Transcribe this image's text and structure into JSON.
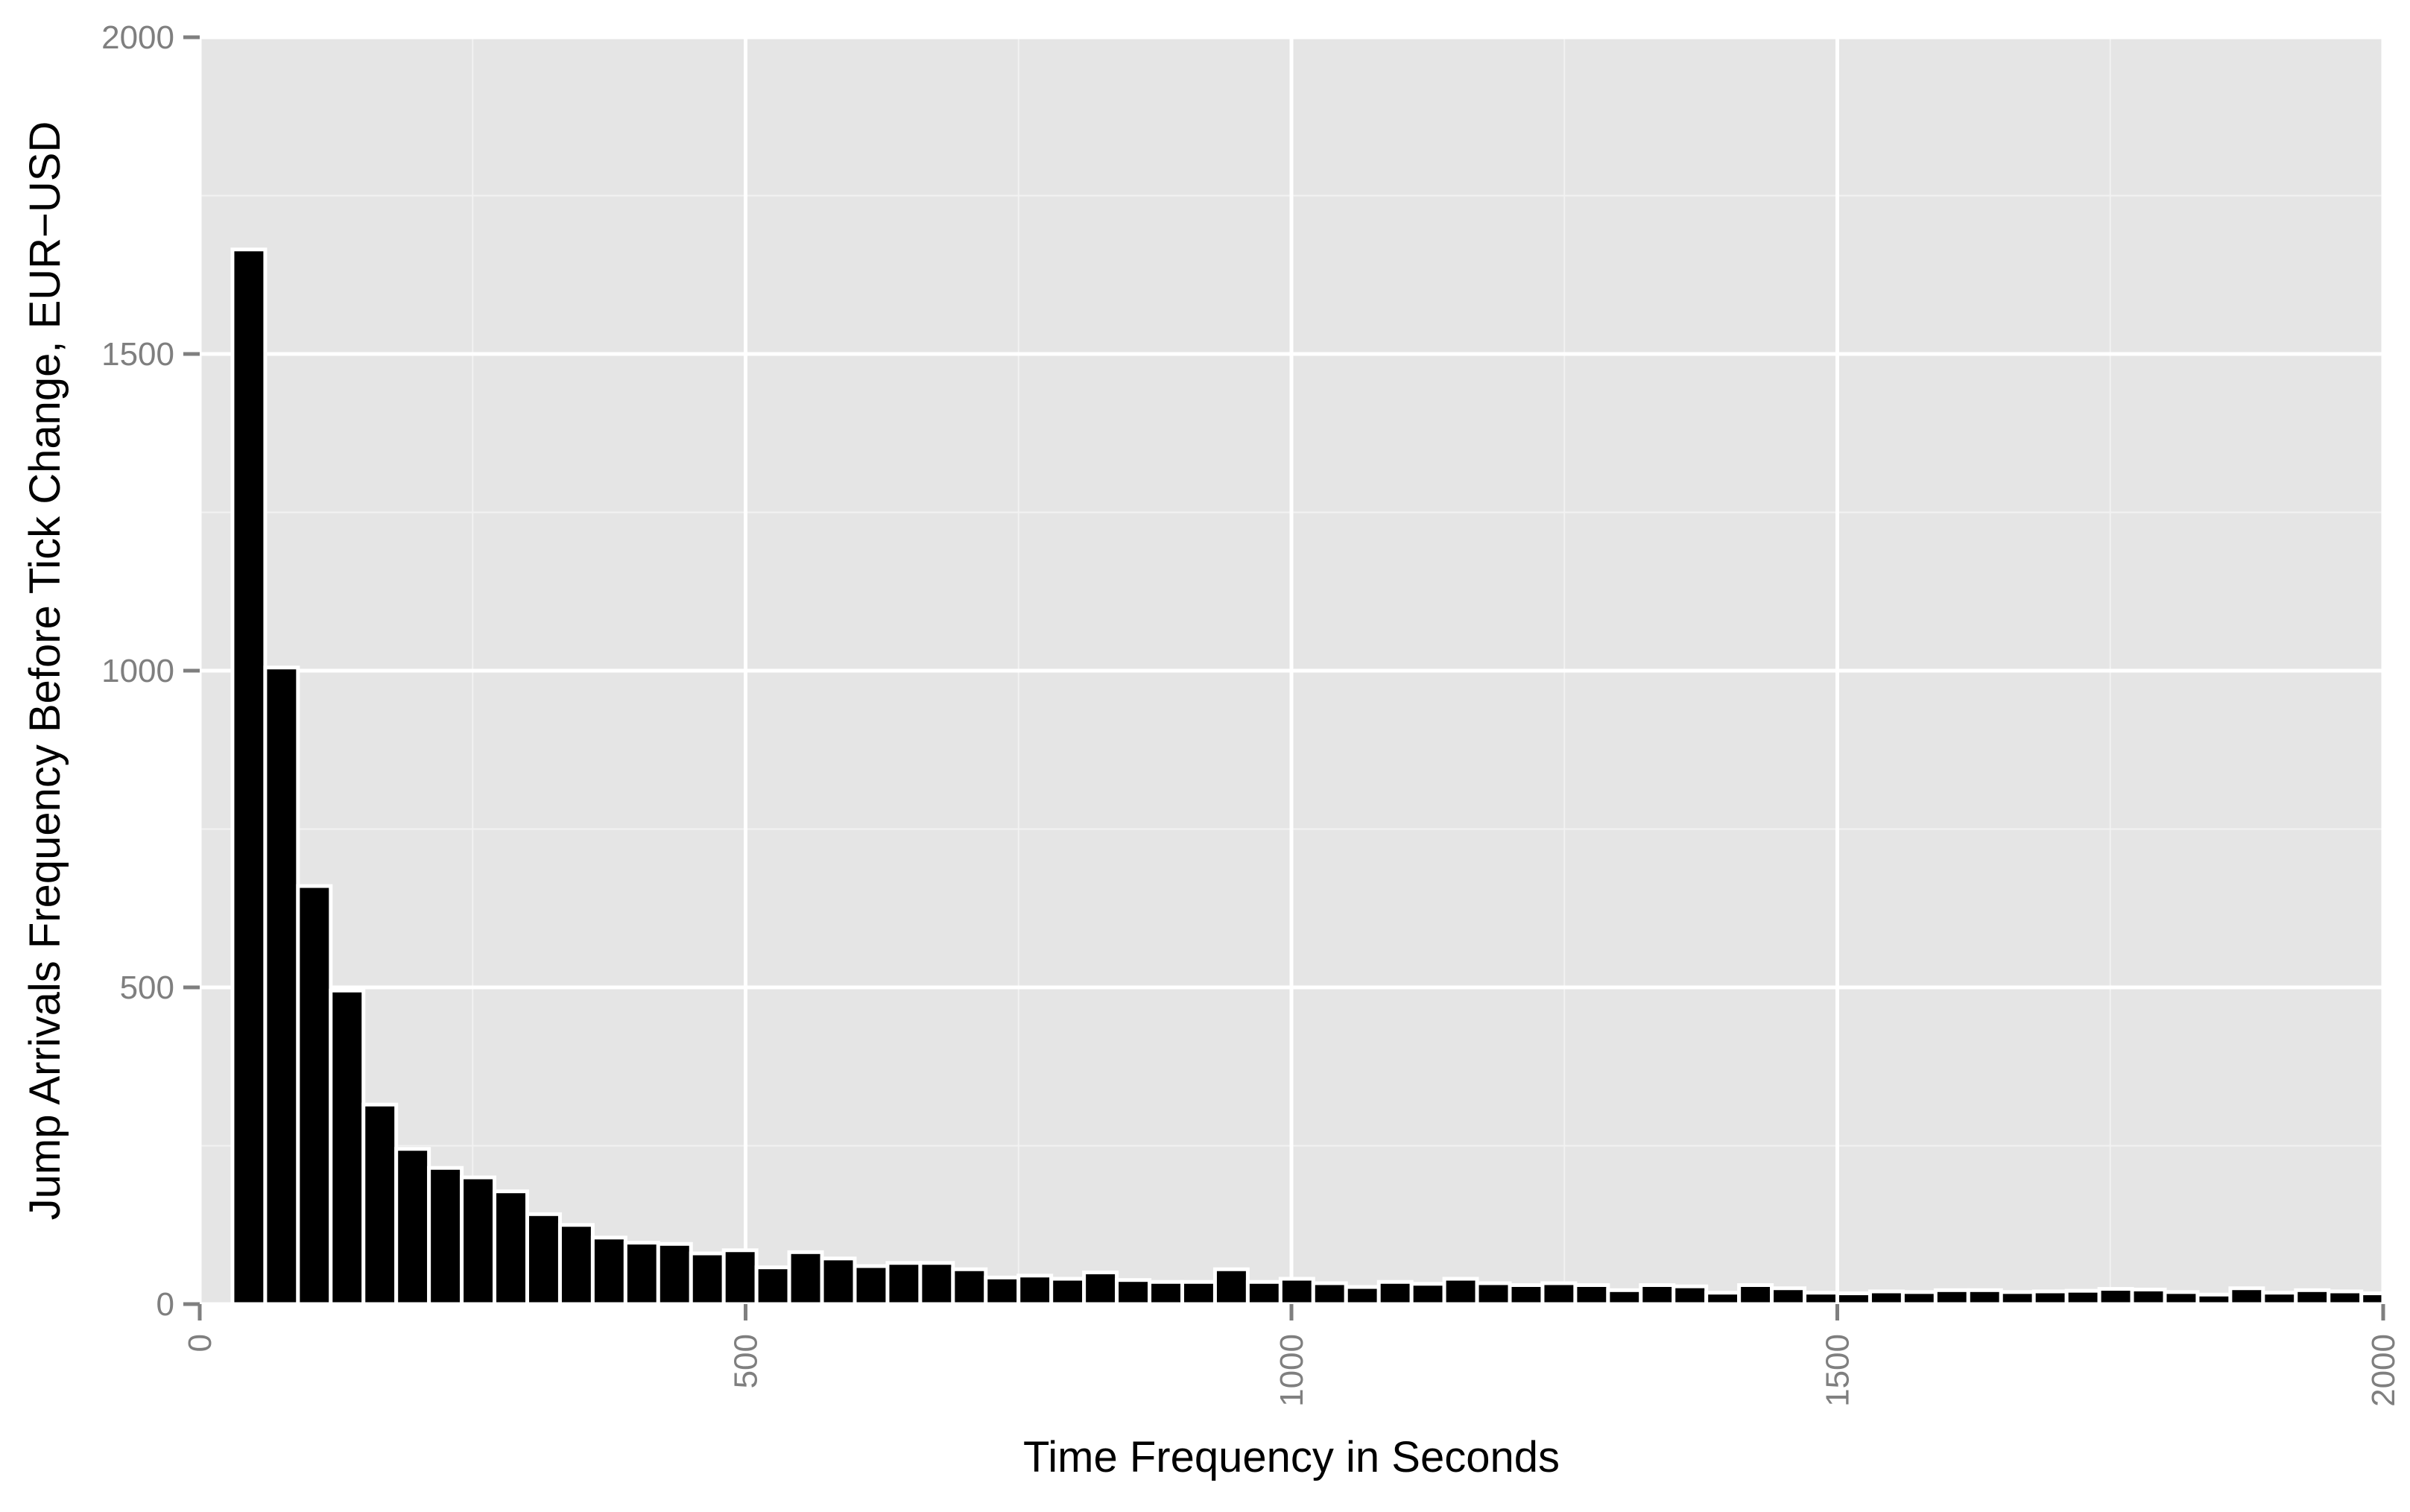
{
  "chart_data": {
    "type": "bar",
    "xlabel": "Time Frequency in Seconds",
    "ylabel": "Jump Arrivals Frequency Before Tick Change, EUR−USD",
    "xlim": [
      0,
      2000
    ],
    "ylim": [
      0,
      2000
    ],
    "x_ticks": [
      "0",
      "500",
      "1000",
      "1500",
      "2000"
    ],
    "y_ticks": [
      "0",
      "500",
      "1000",
      "1500",
      "2000"
    ],
    "grid": true,
    "bin_width": 30,
    "x_start": 30,
    "values": [
      1665,
      1005,
      660,
      495,
      315,
      245,
      215,
      200,
      178,
      142,
      125,
      105,
      97,
      95,
      80,
      85,
      58,
      82,
      72,
      60,
      65,
      65,
      55,
      42,
      45,
      40,
      50,
      38,
      35,
      35,
      55,
      35,
      40,
      33,
      27,
      35,
      32,
      40,
      33,
      30,
      33,
      30,
      22,
      30,
      28,
      18,
      30,
      25,
      18,
      17,
      20,
      19,
      22,
      22,
      19,
      20,
      21,
      24,
      23,
      19,
      15,
      25,
      18,
      22,
      20,
      17
    ],
    "colors": {
      "panel_background": "#e5e5e5",
      "major_grid": "#ffffff",
      "minor_grid": "#f2f2f2",
      "bar_fill": "#000000",
      "bar_outline": "#ffffff",
      "tick_text": "#7f7f7f",
      "axis_title_text": "#000000"
    }
  }
}
